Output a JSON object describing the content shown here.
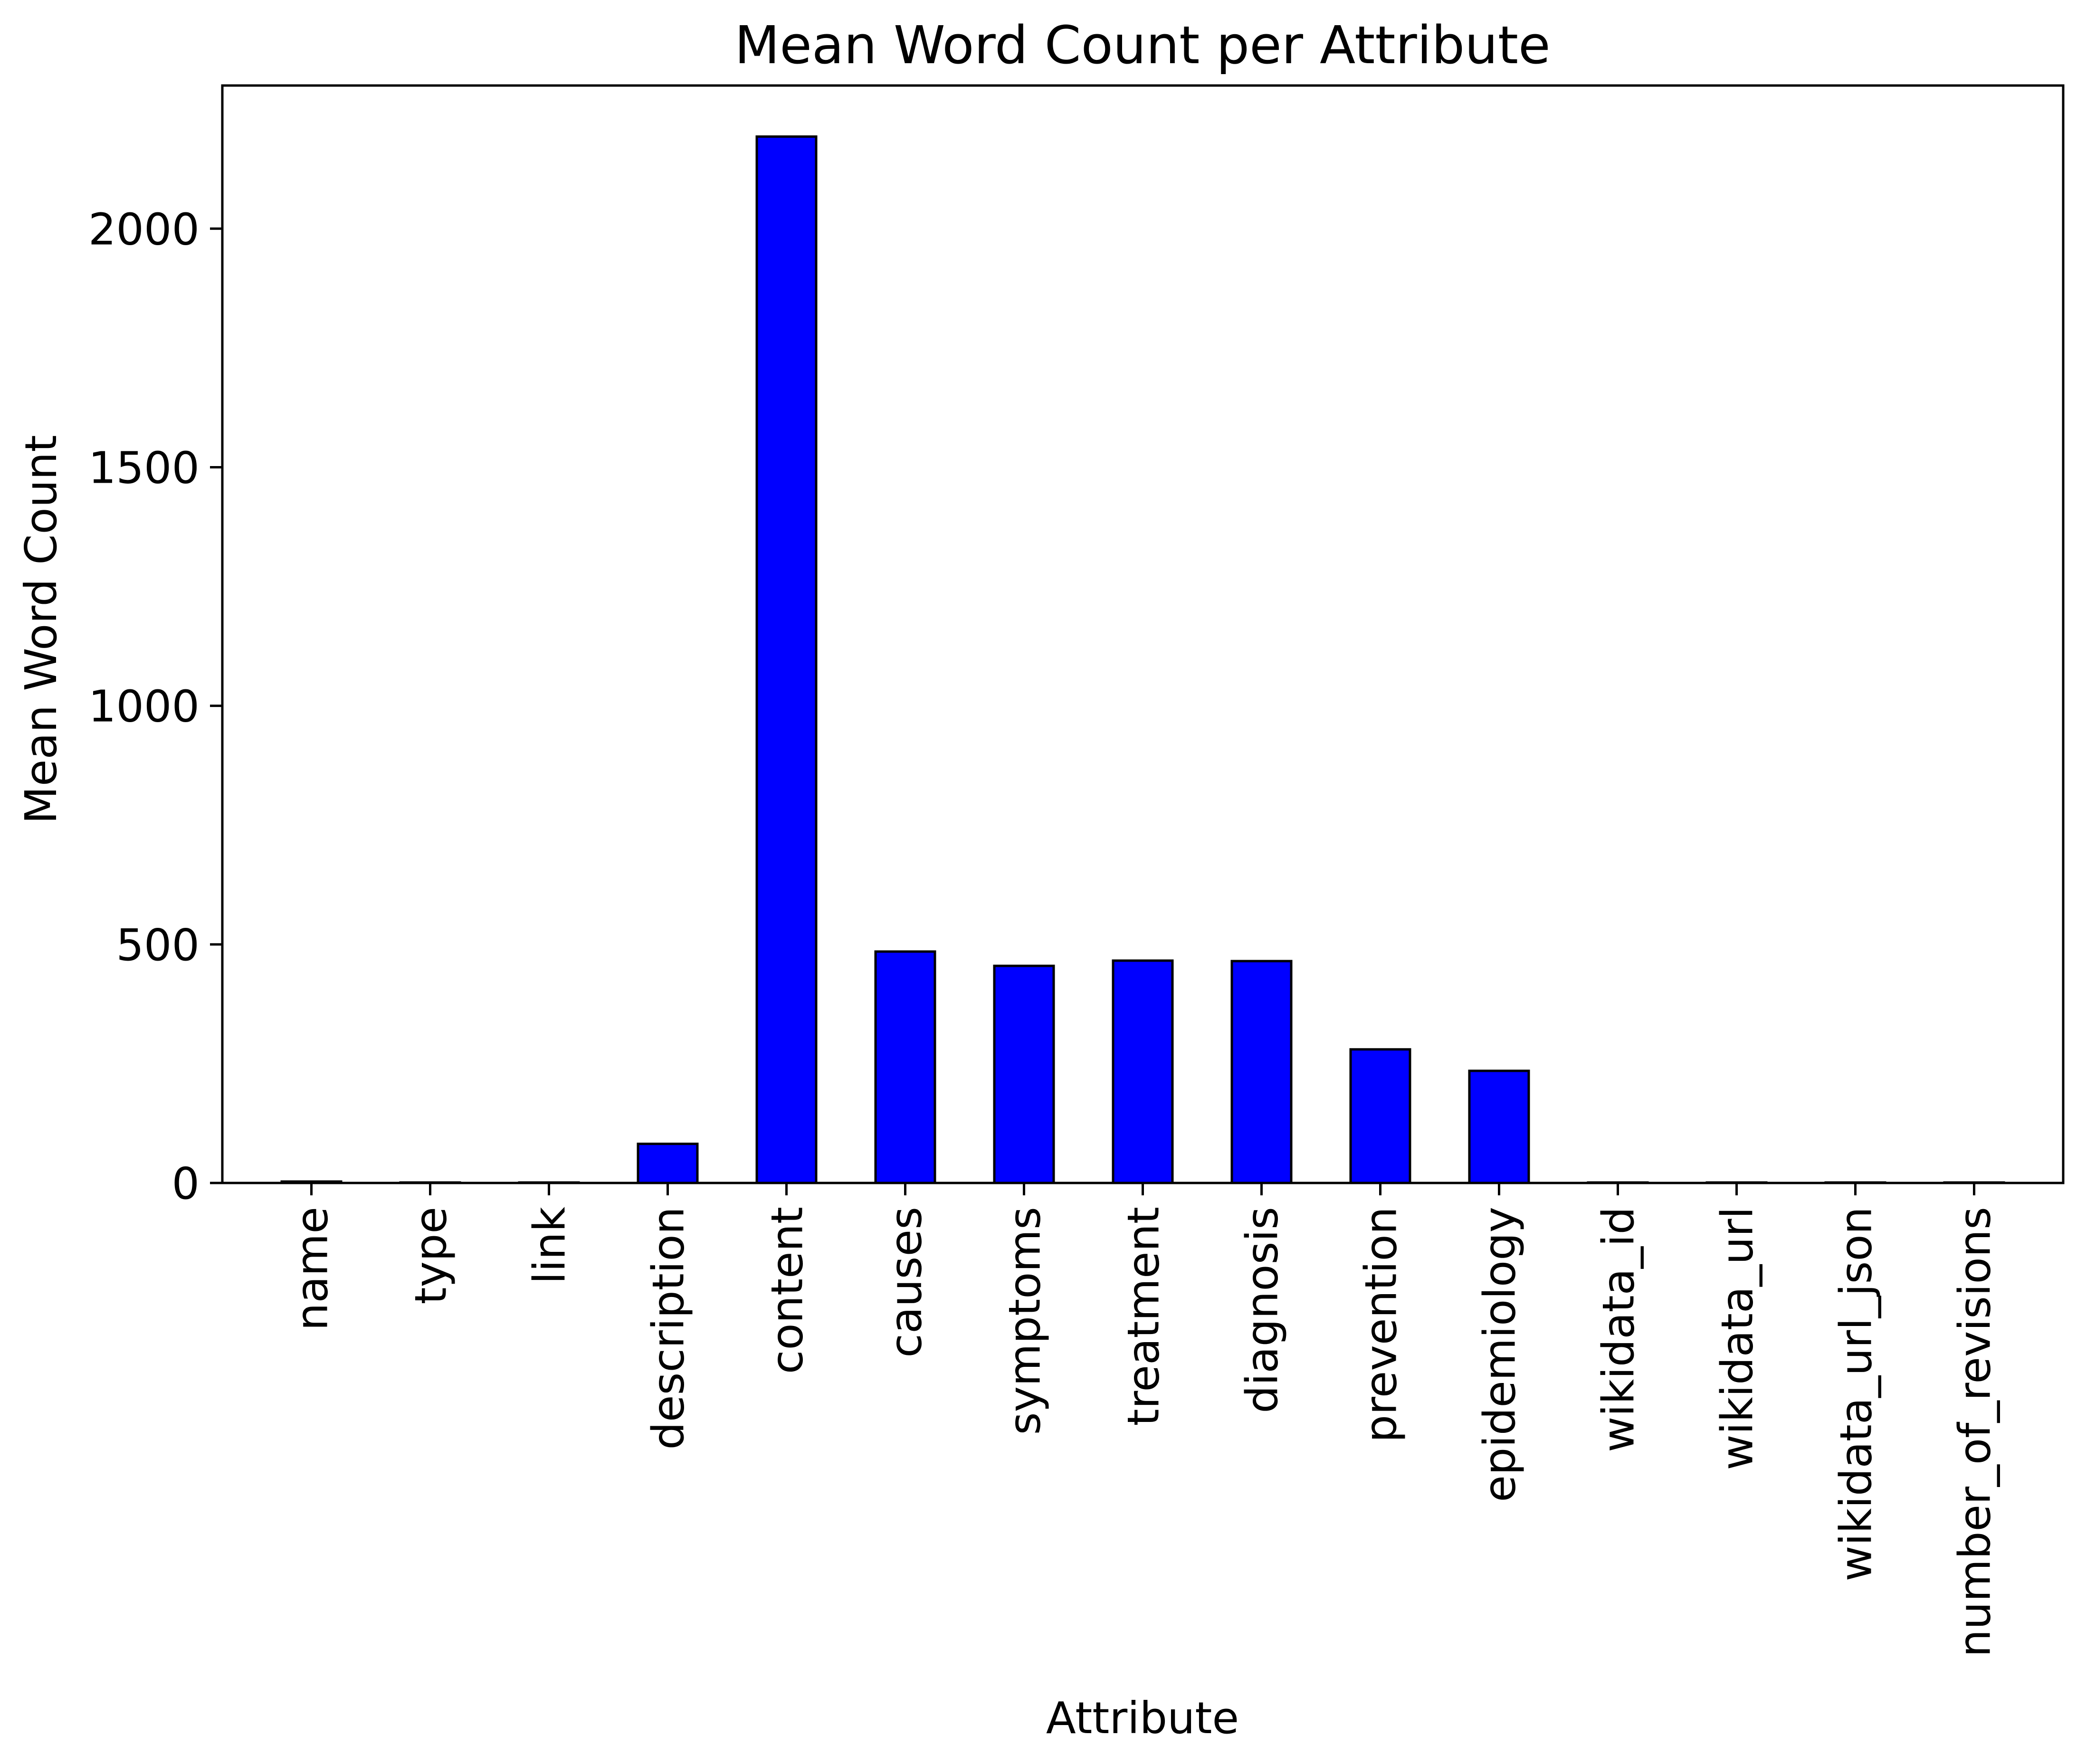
{
  "chart_data": {
    "type": "bar",
    "title": "Mean Word Count per Attribute",
    "xlabel": "Attribute",
    "ylabel": "Mean Word Count",
    "categories": [
      "name",
      "type",
      "link",
      "description",
      "content",
      "causes",
      "symptoms",
      "treatment",
      "diagnosis",
      "prevention",
      "epidemiology",
      "wikidata_id",
      "wikidata_url",
      "wikidata_url_json",
      "number_of_revisions"
    ],
    "values": [
      3,
      1,
      1,
      82,
      2193,
      485,
      455,
      466,
      465,
      280,
      235,
      1,
      1,
      1,
      1
    ],
    "yticks": [
      0,
      500,
      1000,
      1500,
      2000
    ],
    "ylim": [
      0,
      2300
    ],
    "grid": false,
    "legend": "none",
    "bar_color": "#0000ff",
    "edge_color": "#000000"
  }
}
